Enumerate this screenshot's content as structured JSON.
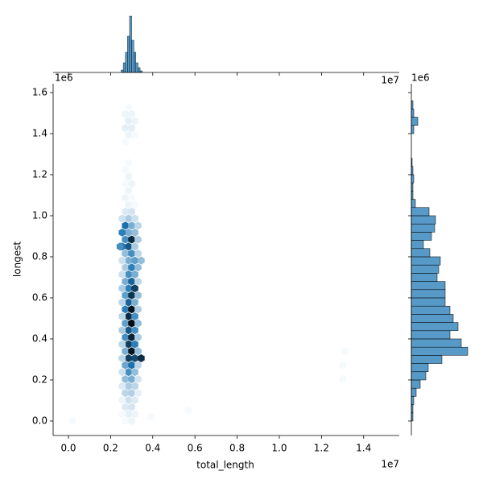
{
  "chart_data": {
    "type": "hexjoint",
    "x_label": "total_length",
    "y_label": "longest",
    "x_offset": "1e7",
    "y_offset": "1e6",
    "color": "#1f77b4",
    "xlim": [
      -0.0725,
      1.569
    ],
    "ylim": [
      -0.0706,
      1.643
    ],
    "xticks": [
      {
        "value": 0,
        "label": "0.0"
      },
      0.2,
      0.4,
      0.6,
      0.8,
      {
        "value": 1,
        "label": "1.0"
      },
      1.2,
      1.4
    ],
    "yticks": [
      {
        "value": 0,
        "label": "0.0"
      },
      0.2,
      0.4,
      0.6,
      0.8,
      {
        "value": 1,
        "label": "1.0"
      },
      1.2,
      1.4,
      1.6
    ],
    "hexbins": [
      [
        0.27,
        0,
        1
      ],
      [
        0.3,
        0,
        2
      ],
      [
        0.02,
        0,
        1
      ],
      [
        0.39,
        0.02,
        1
      ],
      [
        0.57,
        0.05,
        1
      ],
      [
        0.285,
        0.034,
        3
      ],
      [
        0.315,
        0.034,
        2
      ],
      [
        0.255,
        0.034,
        1
      ],
      [
        0.27,
        0.068,
        4
      ],
      [
        0.3,
        0.068,
        5
      ],
      [
        0.285,
        0.102,
        6
      ],
      [
        0.315,
        0.102,
        4
      ],
      [
        0.255,
        0.102,
        2
      ],
      [
        0.27,
        0.136,
        8
      ],
      [
        0.3,
        0.136,
        9
      ],
      [
        0.33,
        0.136,
        3
      ],
      [
        0.285,
        0.17,
        10
      ],
      [
        0.315,
        0.17,
        8
      ],
      [
        0.255,
        0.17,
        4
      ],
      [
        0.27,
        0.204,
        12
      ],
      [
        0.3,
        0.204,
        14
      ],
      [
        0.33,
        0.204,
        5
      ],
      [
        1.3,
        0.204,
        1
      ],
      [
        0.285,
        0.238,
        18
      ],
      [
        0.315,
        0.238,
        12
      ],
      [
        0.255,
        0.238,
        6
      ],
      [
        0.27,
        0.272,
        15
      ],
      [
        0.3,
        0.272,
        22
      ],
      [
        0.33,
        0.272,
        8
      ],
      [
        1.3,
        0.272,
        1
      ],
      [
        0.285,
        0.306,
        30
      ],
      [
        0.315,
        0.306,
        28
      ],
      [
        0.255,
        0.306,
        8
      ],
      [
        0.345,
        0.306,
        34
      ],
      [
        0.27,
        0.34,
        14
      ],
      [
        0.3,
        0.34,
        40
      ],
      [
        0.33,
        0.34,
        12
      ],
      [
        1.31,
        0.34,
        1
      ],
      [
        0.285,
        0.374,
        30
      ],
      [
        0.315,
        0.374,
        20
      ],
      [
        0.255,
        0.374,
        8
      ],
      [
        0.27,
        0.408,
        18
      ],
      [
        0.3,
        0.408,
        36
      ],
      [
        0.33,
        0.408,
        10
      ],
      [
        0.285,
        0.442,
        26
      ],
      [
        0.315,
        0.442,
        18
      ],
      [
        0.255,
        0.442,
        10
      ],
      [
        0.27,
        0.476,
        16
      ],
      [
        0.3,
        0.476,
        42
      ],
      [
        0.33,
        0.476,
        12
      ],
      [
        0.285,
        0.51,
        34
      ],
      [
        0.315,
        0.51,
        18
      ],
      [
        0.255,
        0.51,
        8
      ],
      [
        0.27,
        0.544,
        20
      ],
      [
        0.3,
        0.544,
        40
      ],
      [
        0.33,
        0.544,
        10
      ],
      [
        0.285,
        0.578,
        24
      ],
      [
        0.315,
        0.578,
        14
      ],
      [
        0.255,
        0.578,
        8
      ],
      [
        0.27,
        0.612,
        16
      ],
      [
        0.3,
        0.612,
        32
      ],
      [
        0.33,
        0.612,
        12
      ],
      [
        0.285,
        0.646,
        20
      ],
      [
        0.315,
        0.646,
        30
      ],
      [
        0.255,
        0.646,
        10
      ],
      [
        0.27,
        0.68,
        14
      ],
      [
        0.3,
        0.68,
        24
      ],
      [
        0.33,
        0.68,
        8
      ],
      [
        0.285,
        0.714,
        18
      ],
      [
        0.315,
        0.714,
        14
      ],
      [
        0.255,
        0.714,
        6
      ],
      [
        0.27,
        0.748,
        10
      ],
      [
        0.3,
        0.748,
        20
      ],
      [
        0.33,
        0.748,
        12
      ],
      [
        0.285,
        0.782,
        14
      ],
      [
        0.315,
        0.782,
        16
      ],
      [
        0.255,
        0.782,
        6
      ],
      [
        0.345,
        0.782,
        12
      ],
      [
        0.27,
        0.816,
        12
      ],
      [
        0.3,
        0.816,
        18
      ],
      [
        0.33,
        0.816,
        8
      ],
      [
        0.285,
        0.85,
        26
      ],
      [
        0.315,
        0.85,
        10
      ],
      [
        0.255,
        0.85,
        22
      ],
      [
        0.245,
        0.85,
        18
      ],
      [
        0.27,
        0.884,
        18
      ],
      [
        0.3,
        0.884,
        34
      ],
      [
        0.33,
        0.884,
        10
      ],
      [
        0.285,
        0.918,
        14
      ],
      [
        0.315,
        0.918,
        12
      ],
      [
        0.255,
        0.918,
        20
      ],
      [
        0.27,
        0.952,
        22
      ],
      [
        0.3,
        0.952,
        14
      ],
      [
        0.33,
        0.952,
        8
      ],
      [
        0.285,
        0.986,
        10
      ],
      [
        0.315,
        0.986,
        6
      ],
      [
        0.255,
        0.986,
        6
      ],
      [
        0.27,
        1.02,
        4
      ],
      [
        0.3,
        1.02,
        5
      ],
      [
        0.285,
        1.054,
        2
      ],
      [
        0.315,
        1.054,
        1
      ],
      [
        0.27,
        1.088,
        2
      ],
      [
        0.3,
        1.088,
        1
      ],
      [
        0.285,
        1.122,
        2
      ],
      [
        0.27,
        1.156,
        1
      ],
      [
        0.3,
        1.156,
        2
      ],
      [
        0.285,
        1.19,
        2
      ],
      [
        0.27,
        1.224,
        1
      ],
      [
        0.285,
        1.258,
        1
      ],
      [
        0.27,
        1.36,
        1
      ],
      [
        0.285,
        1.394,
        2
      ],
      [
        0.315,
        1.394,
        1
      ],
      [
        0.27,
        1.428,
        3
      ],
      [
        0.3,
        1.428,
        3
      ],
      [
        0.285,
        1.462,
        3
      ],
      [
        0.315,
        1.462,
        2
      ],
      [
        0.27,
        1.496,
        2
      ],
      [
        0.3,
        1.496,
        2
      ],
      [
        0.285,
        1.53,
        1
      ]
    ],
    "x_hist": {
      "bins": [
        0.25,
        0.26,
        0.27,
        0.28,
        0.29,
        0.3,
        0.31,
        0.32,
        0.33,
        0.34,
        0.35
      ],
      "counts": [
        3,
        12,
        25,
        45,
        70,
        40,
        25,
        12,
        6,
        2
      ],
      "ylim": [
        0,
        75
      ]
    },
    "y_hist": {
      "bins": [
        0,
        0.04,
        0.08,
        0.12,
        0.16,
        0.2,
        0.24,
        0.28,
        0.32,
        0.36,
        0.4,
        0.44,
        0.48,
        0.52,
        0.56,
        0.6,
        0.64,
        0.68,
        0.72,
        0.76,
        0.8,
        0.84,
        0.88,
        0.92,
        0.96,
        1.0,
        1.04,
        1.08,
        1.12,
        1.16,
        1.2,
        1.24,
        1.28,
        1.32,
        1.36,
        1.4,
        1.44,
        1.48,
        1.52,
        1.56
      ],
      "counts": [
        2,
        2,
        3,
        6,
        11,
        18,
        21,
        38,
        70,
        62,
        48,
        58,
        52,
        48,
        42,
        42,
        42,
        32,
        34,
        36,
        23,
        15,
        25,
        29,
        30,
        22,
        5,
        2,
        2,
        3,
        2,
        1,
        0,
        0,
        0,
        3,
        8,
        3,
        2
      ],
      "xlim": [
        0,
        80
      ]
    }
  }
}
